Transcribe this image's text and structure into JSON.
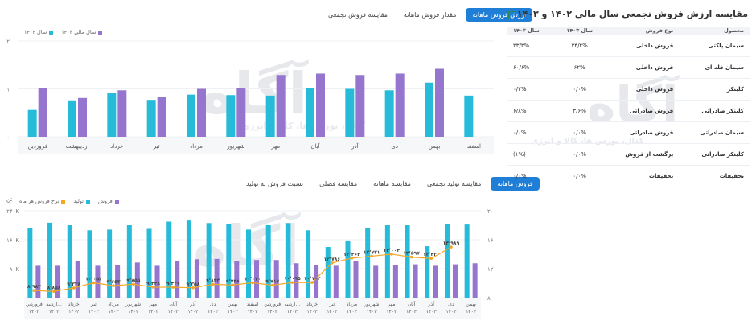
{
  "top_chart": {
    "tabs": [
      {
        "label": "مقایسه فروش تجمعی",
        "active": false
      },
      {
        "label": "مقدار فروش ماهانه",
        "active": false
      },
      {
        "label": "ارزش فروش ماهانه",
        "active": true
      }
    ],
    "legend": [
      {
        "label": "سال مالی ۱۴۰۳",
        "color": "#9575cd"
      },
      {
        "label": "سال ۱۴۰۲",
        "color": "#26bcd9"
      }
    ]
  },
  "bottom_chart": {
    "tabs": [
      {
        "label": "نسبت فروش به تولید",
        "active": false
      },
      {
        "label": "مقایسه فصلی",
        "active": false
      },
      {
        "label": "مقایسه ماهانه",
        "active": false
      },
      {
        "label": "مقایسه تولید تجمعی",
        "active": false
      },
      {
        "label": "فروش ماهانه",
        "active": true
      }
    ],
    "legend": [
      {
        "label": "فروش",
        "color": "#9575cd"
      },
      {
        "label": "تولید",
        "color": "#26bcd9"
      },
      {
        "label": "نرخ فروش هر ماه",
        "color": "#f5a623"
      }
    ],
    "left_unit": "تن"
  },
  "table_panel": {
    "title": "مقایسه ارزش فروش تجمعی سال مالی ۱۴۰۲ و ۱۴۰۳",
    "headers": [
      "محصول",
      "نوع فروش",
      "سال ۱۴۰۳",
      "سال ۱۴۰۲"
    ],
    "rows": [
      [
        "سیمان پاکتی",
        "فروش داخلی",
        "۳۴/۴%",
        "۳۳/۳%"
      ],
      [
        "سیمان فله ای",
        "فروش داخلی",
        "۶۲%",
        "۶۰/۶%"
      ],
      [
        "کلینکر",
        "فروش داخلی",
        "۰/۰%",
        "۰/۳%"
      ],
      [
        "کلینکر صادراتی",
        "فروش صادراتی",
        "۳/۶%",
        "۶/۸%"
      ],
      [
        "سیمان صادراتی",
        "فروش صادراتی",
        "۰/۰%",
        "۰/۰%"
      ],
      [
        "کلینکر صادراتی",
        "برگشت از فروش",
        "۰/۰%",
        "(۱%)"
      ],
      [
        "تخفیفات",
        "تخفیفات",
        "۰/۰%",
        "۰/۰%"
      ]
    ]
  },
  "watermark": {
    "brand": "آگاه",
    "sub": "کدال، بورس ها، کالا و انرژی"
  },
  "chart_data": [
    {
      "type": "bar",
      "title": "",
      "categories": [
        "فروردین",
        "اردیبهشت",
        "خرداد",
        "تیر",
        "مرداد",
        "شهریور",
        "مهر",
        "آبان",
        "آذر",
        "دی",
        "بهمن",
        "اسفند"
      ],
      "series": [
        {
          "name": "سال ۱۴۰۲",
          "color": "#26bcd9",
          "values": [
            0.56,
            0.76,
            0.91,
            0.77,
            0.88,
            0.87,
            0.86,
            1.02,
            1.0,
            0.97,
            1.13,
            0.86
          ]
        },
        {
          "name": "سال مالی ۱۴۰۳",
          "color": "#9575cd",
          "values": [
            1.01,
            0.81,
            0.97,
            0.83,
            1.0,
            1.02,
            1.29,
            1.32,
            1.29,
            1.32,
            1.42,
            null
          ]
        }
      ],
      "y_ticks": [
        "۰",
        "۱",
        "۲"
      ],
      "ylim": [
        0,
        2
      ]
    },
    {
      "type": "bar",
      "title": "",
      "categories": [
        "فروردین ۱۴۰۲",
        "اردیبه... ۱۴۰۲",
        "خرداد ۱۴۰۲",
        "تیر ۱۴۰۲",
        "مرداد ۱۴۰۲",
        "شهریور ۱۴۰۲",
        "مهر ۱۴۰۲",
        "آبان ۱۴۰۲",
        "آذر ۱۴۰۲",
        "دی ۱۴۰۲",
        "بهمن ۱۴۰۲",
        "اسفند ۱۴۰۲",
        "فروردین ۱۴۰۳",
        "اردیبه... ۱۴۰۳",
        "خرداد ۱۴۰۳",
        "تیر ۱۴۰۳",
        "مرداد ۱۴۰۳",
        "شهریور ۱۴۰۳",
        "مهر ۱۴۰۳",
        "آبان ۱۴۰۳",
        "آذر ۱۴۰۳",
        "دی ۱۴۰۳",
        "بهمن ۱۴۰۳"
      ],
      "series": [
        {
          "name": "تولید",
          "color": "#26bcd9",
          "values": [
            192,
            207,
            200,
            186,
            188,
            200,
            190,
            210,
            213,
            206,
            203,
            188,
            200,
            206,
            186,
            140,
            158,
            192,
            200,
            200,
            142,
            203,
            202
          ]
        },
        {
          "name": "فروش",
          "color": "#9575cd",
          "values": [
            88,
            88,
            100,
            88,
            90,
            97,
            88,
            102,
            106,
            107,
            101,
            104,
            104,
            95,
            90,
            88,
            101,
            88,
            90,
            92,
            88,
            92,
            95
          ]
        },
        {
          "name": "نرخ فروش هر ماه",
          "color": "#f5a623",
          "axis": "right",
          "values": [
            8.982,
            8.858,
            9.338,
            10.052,
            9.653,
            9.855,
            9.448,
            9.437,
            9.358,
            9.843,
            9.746,
            10.07,
            9.717,
            10.095,
            10.102,
            12.786,
            13.462,
            13.731,
            14.004,
            13.597,
            13.42,
            14.989,
            null
          ]
        }
      ],
      "data_labels": [
        "۸٬۹۸۲",
        "۸٬۸۵۸",
        "۹٬۳۳۸",
        "۱۰٬۰۵۲",
        "۹٬۶۵۳",
        "۹٬۸۵۵",
        "۹٬۴۴۸",
        "۹٬۴۳۷",
        "۹٬۳۵۸",
        "۹٬۸۴۳",
        "۹٬۷۴۶",
        "۱۰٬۰۷۰",
        "۹٬۷۱۷",
        "۱۰٬۰۹۵",
        "۱۰٬۱۰۲",
        "۱۲٬۷۸۶",
        "۱۳٬۴۶۲",
        "۱۳٬۷۳۱",
        "۱۴٬۰۰۴",
        "۱۳٬۵۹۷",
        "۱۳٬۴۲۰",
        "۱۴٬۹۸۹",
        ""
      ],
      "left_ticks": [
        "۰",
        "۸۰K",
        "۱۶۰K",
        "۲۴۰K"
      ],
      "left_ylim": [
        0,
        240
      ],
      "right_ticks": [
        "۸",
        "۱۲",
        "۱۶",
        "۲۰"
      ],
      "right_ylim": [
        8,
        20
      ]
    }
  ]
}
